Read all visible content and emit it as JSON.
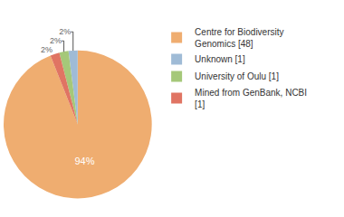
{
  "chart_data": {
    "type": "pie",
    "categories": [
      "Centre for Biodiversity Genomics [48]",
      "Unknown [1]",
      "University of Oulu [1]",
      "Mined from GenBank, NCBI [1]"
    ],
    "values": [
      94,
      2,
      2,
      2
    ],
    "value_labels": [
      "94%",
      "2%",
      "2%",
      "2%"
    ],
    "colors": [
      "#efad70",
      "#9fbbd6",
      "#a5c879",
      "#e07463"
    ],
    "data_labels": true,
    "legend": "upper right"
  }
}
